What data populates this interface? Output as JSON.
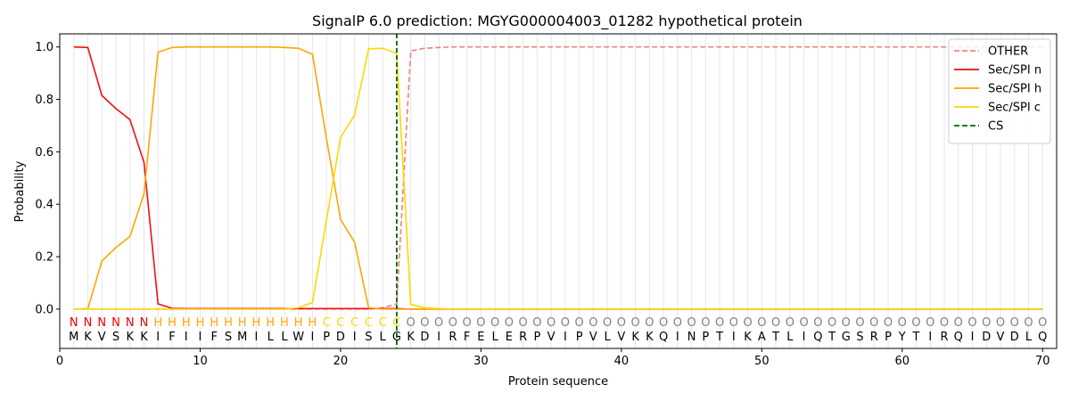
{
  "chart_data": {
    "type": "line",
    "title": "SignalP 6.0 prediction: MGYG000004003_01282 hypothetical protein",
    "xlabel": "Protein sequence",
    "ylabel": "Probability",
    "xlim": [
      0,
      71
    ],
    "ylim": [
      -0.15,
      1.05
    ],
    "x_ticks": [
      0,
      10,
      20,
      30,
      40,
      50,
      60,
      70
    ],
    "y_ticks": [
      "0.0",
      "0.2",
      "0.4",
      "0.6",
      "0.8",
      "1.0"
    ],
    "sequence": "MKVSKKIFIIFSMILLWIPDISLGKDIRFELERPVIPVLVKKQINPTIKATLIQTGSRPYTIRQIDVDLQ",
    "labels": "NNNNNNHHHHHHHHHHHHCCCCCCOOOOOOOOOOOOOOOOOOOOOOOOOOOOOOOOOOOOOOOOOOOOOO",
    "label_colors": {
      "N": "#ee0000",
      "H": "#ffa500",
      "C": "#ffd700",
      "O": "#808080"
    },
    "cleavage_site": 24,
    "legend_position": "upper right",
    "series": [
      {
        "name": "OTHER",
        "color": "#f08080",
        "dash": true,
        "values": [
          0,
          0,
          0,
          0,
          0,
          0,
          0,
          0,
          0,
          0,
          0,
          0,
          0,
          0,
          0,
          0,
          0,
          0,
          0,
          0,
          0,
          0,
          0.005,
          0.02,
          0.985,
          0.995,
          0.998,
          1,
          1,
          1,
          1,
          1,
          1,
          1,
          1,
          1,
          1,
          1,
          1,
          1,
          1,
          1,
          1,
          1,
          1,
          1,
          1,
          1,
          1,
          1,
          1,
          1,
          1,
          1,
          1,
          1,
          1,
          1,
          1,
          1,
          1,
          1,
          1,
          1,
          1,
          1,
          1,
          1,
          1,
          1
        ]
      },
      {
        "name": "Sec/SPI n",
        "color": "#ee1111",
        "dash": false,
        "values": [
          1.0,
          0.998,
          0.815,
          0.765,
          0.723,
          0.56,
          0.02,
          0.003,
          0.002,
          0.002,
          0.002,
          0.002,
          0.002,
          0.002,
          0.002,
          0.002,
          0.002,
          0.002,
          0.002,
          0.002,
          0.002,
          0.002,
          0.002,
          0.002,
          0,
          0,
          0,
          0,
          0,
          0,
          0,
          0,
          0,
          0,
          0,
          0,
          0,
          0,
          0,
          0,
          0,
          0,
          0,
          0,
          0,
          0,
          0,
          0,
          0,
          0,
          0,
          0,
          0,
          0,
          0,
          0,
          0,
          0,
          0,
          0,
          0,
          0,
          0,
          0,
          0,
          0,
          0,
          0,
          0,
          0
        ]
      },
      {
        "name": "Sec/SPI h",
        "color": "#ffa500",
        "dash": false,
        "values": [
          0,
          0.002,
          0.183,
          0.235,
          0.277,
          0.44,
          0.98,
          0.998,
          1,
          1,
          1,
          1,
          1,
          1,
          1,
          0.998,
          0.995,
          0.972,
          0.65,
          0.342,
          0.255,
          0.005,
          0,
          0,
          0,
          0,
          0,
          0,
          0,
          0,
          0,
          0,
          0,
          0,
          0,
          0,
          0,
          0,
          0,
          0,
          0,
          0,
          0,
          0,
          0,
          0,
          0,
          0,
          0,
          0,
          0,
          0,
          0,
          0,
          0,
          0,
          0,
          0,
          0,
          0,
          0,
          0,
          0,
          0,
          0,
          0,
          0,
          0,
          0,
          0
        ]
      },
      {
        "name": "Sec/SPI c",
        "color": "#ffd700",
        "dash": false,
        "values": [
          0,
          0,
          0,
          0,
          0,
          0,
          0,
          0,
          0,
          0,
          0,
          0,
          0,
          0,
          0,
          0,
          0.005,
          0.025,
          0.34,
          0.655,
          0.74,
          0.993,
          0.995,
          0.975,
          0.018,
          0.005,
          0.002,
          0,
          0,
          0,
          0,
          0,
          0,
          0,
          0,
          0,
          0,
          0,
          0,
          0,
          0,
          0,
          0,
          0,
          0,
          0,
          0,
          0,
          0,
          0,
          0,
          0,
          0,
          0,
          0,
          0,
          0,
          0,
          0,
          0,
          0,
          0,
          0,
          0,
          0,
          0,
          0,
          0,
          0,
          0
        ]
      }
    ],
    "cs_legend": {
      "name": "CS",
      "color": "#006400"
    }
  }
}
